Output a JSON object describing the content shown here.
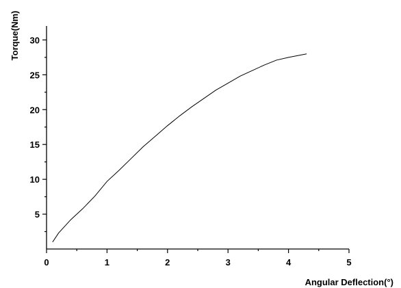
{
  "chart_data": {
    "type": "line",
    "xlabel": "Angular Deflection(°)",
    "ylabel": "Torque(Nm)",
    "xlim": [
      0,
      5
    ],
    "ylim": [
      0,
      32
    ],
    "x_ticks": [
      0,
      1,
      2,
      3,
      4,
      5
    ],
    "y_ticks": [
      5,
      10,
      15,
      20,
      25,
      30
    ],
    "grid": false,
    "legend": "none",
    "line_color": "#000000",
    "series": [
      {
        "x": [
          0.1,
          0.2,
          0.4,
          0.6,
          0.8,
          1.0,
          1.2,
          1.4,
          1.6,
          1.8,
          2.0,
          2.2,
          2.4,
          2.6,
          2.8,
          3.0,
          3.2,
          3.4,
          3.6,
          3.8,
          4.0,
          4.3
        ],
        "values": [
          1.0,
          2.3,
          4.2,
          5.8,
          7.6,
          9.7,
          11.3,
          13.0,
          14.7,
          16.2,
          17.7,
          19.1,
          20.4,
          21.6,
          22.8,
          23.8,
          24.8,
          25.6,
          26.4,
          27.1,
          27.5,
          28.0
        ]
      }
    ]
  }
}
